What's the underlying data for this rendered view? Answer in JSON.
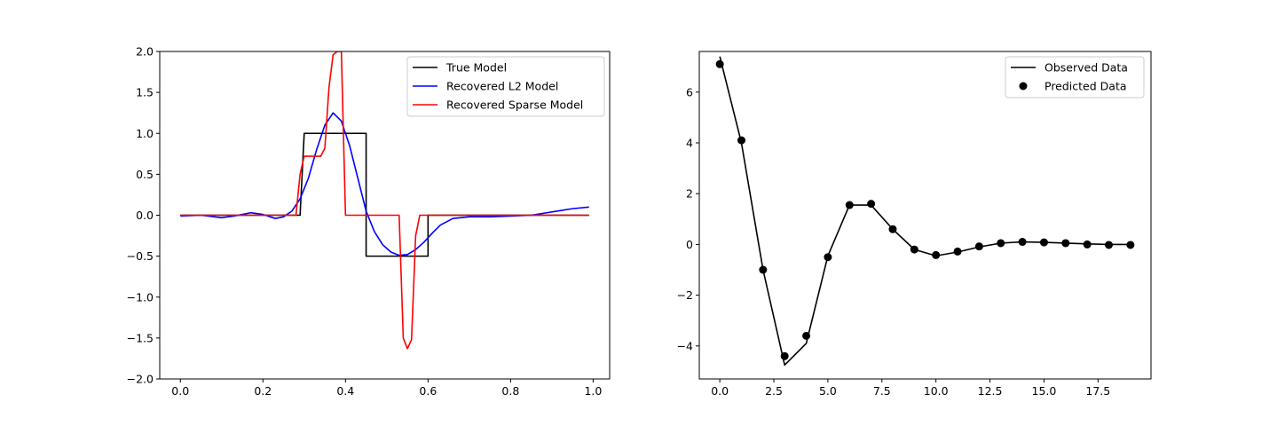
{
  "chart_data": [
    {
      "type": "line",
      "title": "",
      "xlabel": "",
      "ylabel": "",
      "xlim": [
        -0.05,
        1.04
      ],
      "ylim": [
        -2.0,
        2.0
      ],
      "xticks": [
        0.0,
        0.2,
        0.4,
        0.6,
        0.8,
        1.0
      ],
      "xtick_labels": [
        "0.0",
        "0.2",
        "0.4",
        "0.6",
        "0.8",
        "1.0"
      ],
      "yticks": [
        -2.0,
        -1.5,
        -1.0,
        -0.5,
        0.0,
        0.5,
        1.0,
        1.5,
        2.0
      ],
      "ytick_labels": [
        "−2.0",
        "−1.5",
        "−1.0",
        "−0.5",
        "0.0",
        "0.5",
        "1.0",
        "1.5",
        "2.0"
      ],
      "grid": false,
      "legend_position": "top-right",
      "series": [
        {
          "name": "True Model",
          "color": "#000000",
          "x": [
            0.0,
            0.29,
            0.3,
            0.45,
            0.45,
            0.55,
            0.6,
            0.6,
            0.99
          ],
          "y": [
            0.0,
            0.0,
            1.0,
            1.0,
            -0.5,
            -0.5,
            -0.5,
            0.0,
            0.0
          ]
        },
        {
          "name": "Recovered L2 Model",
          "color": "#0000ff",
          "x": [
            0.0,
            0.05,
            0.1,
            0.13,
            0.17,
            0.2,
            0.23,
            0.25,
            0.27,
            0.29,
            0.31,
            0.33,
            0.35,
            0.37,
            0.39,
            0.41,
            0.43,
            0.45,
            0.47,
            0.49,
            0.51,
            0.53,
            0.55,
            0.57,
            0.59,
            0.61,
            0.63,
            0.66,
            0.7,
            0.75,
            0.8,
            0.85,
            0.9,
            0.95,
            0.99
          ],
          "y": [
            -0.01,
            0.0,
            -0.03,
            -0.01,
            0.03,
            0.01,
            -0.04,
            -0.02,
            0.05,
            0.2,
            0.45,
            0.8,
            1.1,
            1.25,
            1.15,
            0.85,
            0.45,
            0.05,
            -0.2,
            -0.36,
            -0.45,
            -0.49,
            -0.48,
            -0.42,
            -0.33,
            -0.22,
            -0.12,
            -0.04,
            -0.02,
            -0.02,
            -0.01,
            0.0,
            0.04,
            0.08,
            0.1
          ]
        },
        {
          "name": "Recovered Sparse Model",
          "color": "#ff0000",
          "x": [
            0.0,
            0.28,
            0.29,
            0.3,
            0.31,
            0.33,
            0.34,
            0.35,
            0.36,
            0.37,
            0.38,
            0.39,
            0.4,
            0.41,
            0.53,
            0.54,
            0.55,
            0.56,
            0.57,
            0.58,
            0.59,
            0.6,
            0.99
          ],
          "y": [
            0.0,
            0.0,
            0.5,
            0.72,
            0.72,
            0.72,
            0.72,
            0.82,
            1.56,
            1.96,
            2.0,
            2.0,
            0.0,
            0.0,
            0.0,
            -1.5,
            -1.63,
            -1.52,
            -0.25,
            0.0,
            0.0,
            0.0,
            0.0
          ]
        }
      ]
    },
    {
      "type": "line",
      "title": "",
      "xlabel": "",
      "ylabel": "",
      "xlim": [
        -0.95,
        19.95
      ],
      "ylim": [
        -5.3,
        7.6
      ],
      "xticks": [
        0.0,
        2.5,
        5.0,
        7.5,
        10.0,
        12.5,
        15.0,
        17.5
      ],
      "xtick_labels": [
        "0.0",
        "2.5",
        "5.0",
        "7.5",
        "10.0",
        "12.5",
        "15.0",
        "17.5"
      ],
      "yticks": [
        -4,
        -2,
        0,
        2,
        4,
        6
      ],
      "ytick_labels": [
        "−4",
        "−2",
        "0",
        "2",
        "4",
        "6"
      ],
      "grid": false,
      "legend_position": "top-right",
      "series": [
        {
          "name": "Observed Data",
          "color": "#000000",
          "style": "line",
          "x": [
            0,
            1,
            2,
            3,
            4,
            5,
            6,
            7,
            8,
            9,
            10,
            11,
            12,
            13,
            14,
            15,
            16,
            17,
            18,
            19
          ],
          "y": [
            7.4,
            4.0,
            -1.0,
            -4.75,
            -3.9,
            -0.45,
            1.55,
            1.55,
            0.6,
            -0.2,
            -0.45,
            -0.3,
            -0.1,
            0.05,
            0.1,
            0.08,
            0.05,
            0.02,
            0.0,
            0.0
          ]
        },
        {
          "name": "Predicted Data",
          "color": "#000000",
          "style": "markers",
          "x": [
            0,
            1,
            2,
            3,
            4,
            5,
            6,
            7,
            8,
            9,
            10,
            11,
            12,
            13,
            14,
            15,
            16,
            17,
            18,
            19
          ],
          "y": [
            7.1,
            4.1,
            -1.0,
            -4.4,
            -3.6,
            -0.5,
            1.55,
            1.6,
            0.6,
            -0.2,
            -0.42,
            -0.28,
            -0.08,
            0.05,
            0.1,
            0.08,
            0.05,
            0.0,
            -0.02,
            -0.02
          ]
        }
      ]
    }
  ]
}
